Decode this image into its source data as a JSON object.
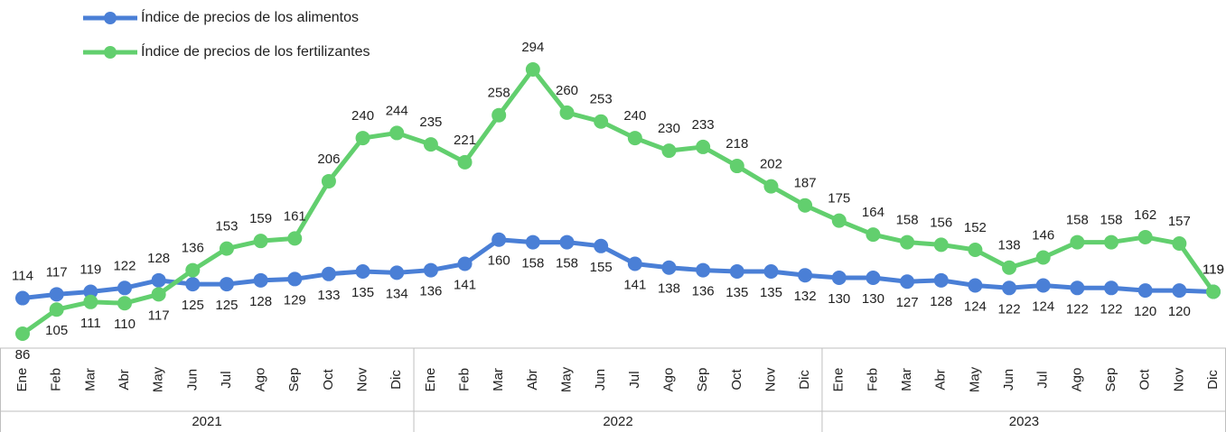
{
  "chart_data": {
    "type": "line",
    "categories": [
      "Ene",
      "Feb",
      "Mar",
      "Abr",
      "May",
      "Jun",
      "Jul",
      "Ago",
      "Sep",
      "Oct",
      "Nov",
      "Dic",
      "Ene",
      "Feb",
      "Mar",
      "Abr",
      "May",
      "Jun",
      "Jul",
      "Ago",
      "Sep",
      "Oct",
      "Nov",
      "Dic",
      "Ene",
      "Feb",
      "Mar",
      "Abr",
      "May",
      "Jun",
      "Jul",
      "Ago",
      "Sep",
      "Oct",
      "Nov",
      "Dic"
    ],
    "years": [
      "2021",
      "2022",
      "2023"
    ],
    "series": [
      {
        "name": "Índice de precios de los alimentos",
        "color": "#4a7fd6",
        "values": [
          114,
          117,
          119,
          122,
          128,
          125,
          125,
          128,
          129,
          133,
          135,
          134,
          136,
          141,
          160,
          158,
          158,
          155,
          141,
          138,
          136,
          135,
          135,
          132,
          130,
          130,
          127,
          128,
          124,
          122,
          124,
          122,
          122,
          120,
          120,
          119
        ]
      },
      {
        "name": "Índice de precios de los fertilizantes",
        "color": "#62cf6e",
        "values": [
          86,
          105,
          111,
          110,
          117,
          136,
          153,
          159,
          161,
          206,
          240,
          244,
          235,
          221,
          258,
          294,
          260,
          253,
          240,
          230,
          233,
          218,
          202,
          187,
          175,
          164,
          158,
          156,
          152,
          138,
          146,
          158,
          158,
          162,
          157,
          119
        ]
      }
    ],
    "legend": "top-left"
  }
}
